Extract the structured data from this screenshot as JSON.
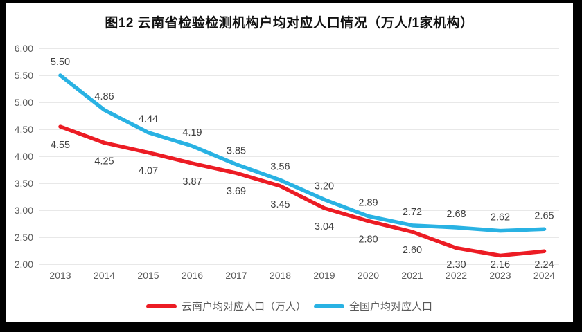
{
  "chart_data": {
    "type": "line",
    "title": "图12  云南省检验检测机构户均对应人口情况（万人/1家机构）",
    "categories": [
      "2013",
      "2014",
      "2015",
      "2016",
      "2017",
      "2018",
      "2019",
      "2020",
      "2021",
      "2022",
      "2023",
      "2024"
    ],
    "series": [
      {
        "name": "云南户均对应人口（万人）",
        "color": "#ec1c24",
        "label_position": "below",
        "values": [
          4.55,
          4.25,
          4.07,
          3.87,
          3.69,
          3.45,
          3.04,
          2.8,
          2.6,
          2.3,
          2.16,
          2.24
        ]
      },
      {
        "name": "全国户均对应人口",
        "color": "#29b2e3",
        "label_position": "above",
        "values": [
          5.5,
          4.86,
          4.44,
          4.19,
          3.85,
          3.56,
          3.2,
          2.89,
          2.72,
          2.68,
          2.62,
          2.65
        ]
      }
    ],
    "y_ticks": [
      "6.00",
      "5.50",
      "5.00",
      "4.50",
      "4.00",
      "3.50",
      "3.00",
      "2.50",
      "2.00"
    ],
    "ylim": [
      2.0,
      6.0
    ],
    "xlabel": "",
    "ylabel": "",
    "grid": "horizontal",
    "legend_position": "bottom",
    "value_label_format": "two-decimals",
    "colors": {
      "gridline": "#d9d9d9",
      "axis_tick_text": "#595959",
      "data_label_text": "#404040",
      "title_text": "#111111",
      "background": "#ffffff",
      "outer_border": "#000000"
    }
  }
}
